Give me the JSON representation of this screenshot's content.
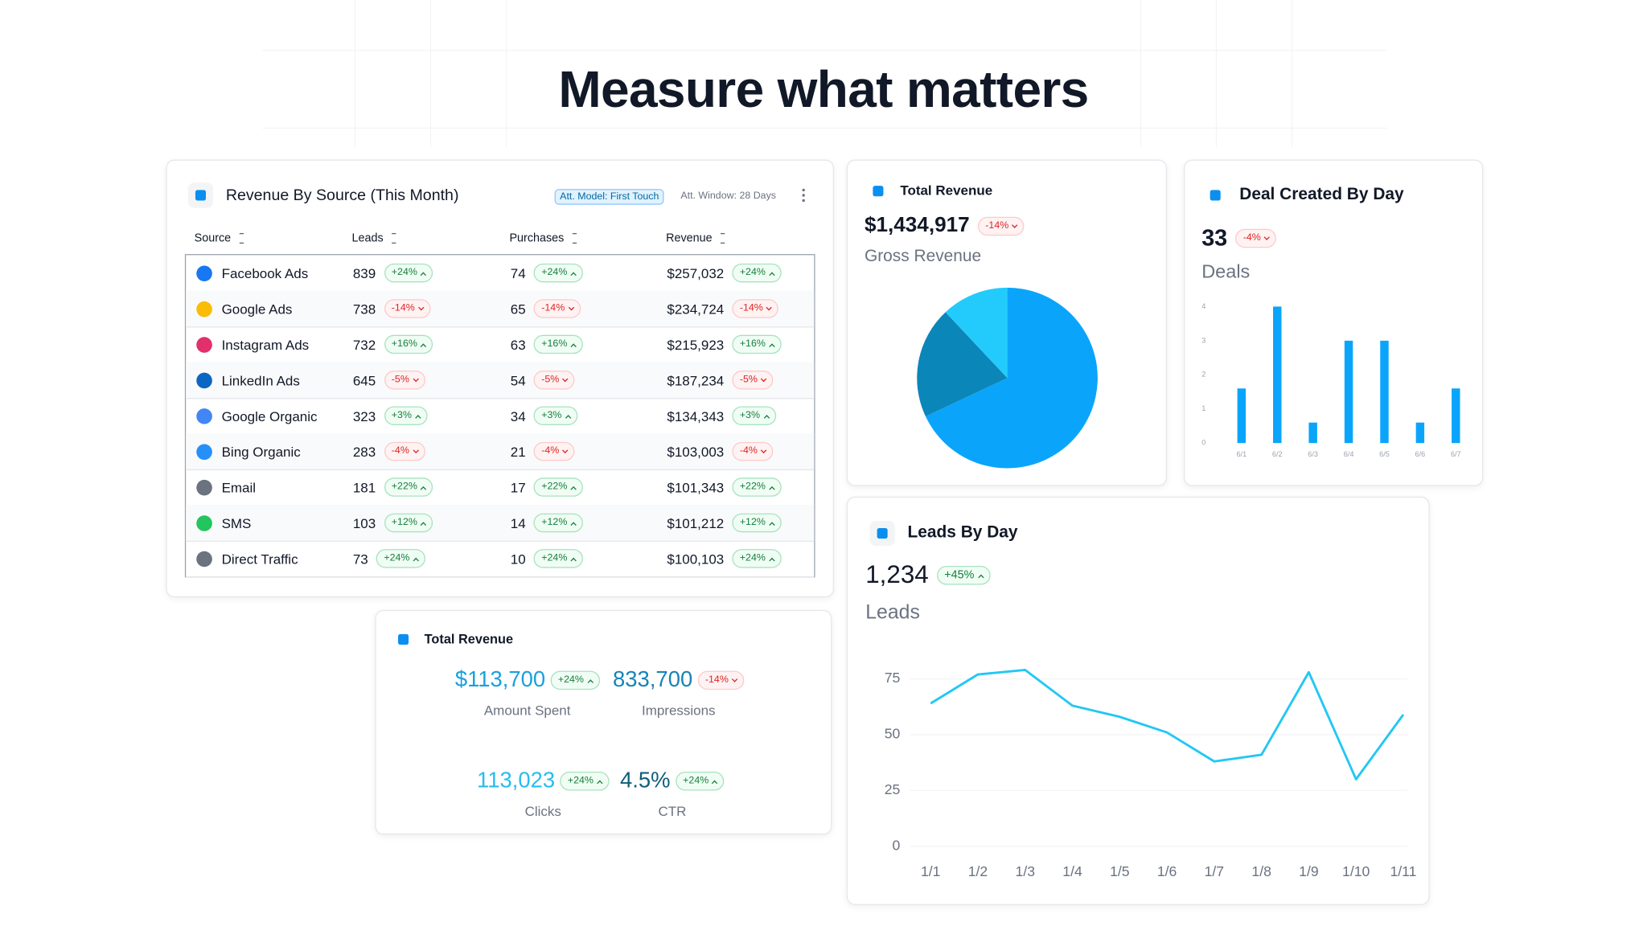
{
  "header": {
    "title": "Measure what matters"
  },
  "table": {
    "title": "Revenue By Source (This Month)",
    "badges": [
      "Att. Model: First Touch",
      "Att. Window: 28 Days"
    ],
    "columns": [
      "Source",
      "Leads",
      "Purchases",
      "Revenue"
    ],
    "rows": [
      [
        "Facebook Ads",
        "839",
        "+24%",
        "74",
        "+24%",
        "$257,032",
        "+24%"
      ],
      [
        "Google Ads",
        "738",
        "-14%",
        "65",
        "-14%",
        "$234,724",
        "-14%"
      ],
      [
        "Instagram Ads",
        "732",
        "+16%",
        "63",
        "+16%",
        "$215,923",
        "+16%"
      ],
      [
        "LinkedIn Ads",
        "645",
        "-5%",
        "54",
        "-5%",
        "$187,234",
        "-5%"
      ],
      [
        "Google Organic",
        "323",
        "+3%",
        "34",
        "+3%",
        "$134,343",
        "+3%"
      ],
      [
        "Bing Organic",
        "283",
        "-4%",
        "21",
        "-4%",
        "$103,003",
        "-4%"
      ],
      [
        "Email",
        "181",
        "+22%",
        "17",
        "+22%",
        "$101,343",
        "+22%"
      ],
      [
        "SMS",
        "103",
        "+12%",
        "14",
        "+12%",
        "$101,212",
        "+12%"
      ],
      [
        "Direct Traffic",
        "73",
        "+24%",
        "10",
        "+24%",
        "$100,103",
        "+24%"
      ]
    ]
  },
  "kpi_card": {
    "title": "Total Revenue",
    "metrics": [
      {
        "value": "$113,700",
        "change": "+24%",
        "label": "Amount Spent",
        "color": "#1aa0dc"
      },
      {
        "value": "833,700",
        "change": "-14%",
        "label": "Impressions",
        "color": "#1784b6"
      },
      {
        "value": "113,023",
        "change": "+24%",
        "label": "Clicks",
        "color": "#26bdf0"
      },
      {
        "value": "4.5%",
        "change": "+24%",
        "label": "CTR",
        "color": "#0f5f7c"
      }
    ]
  },
  "chart_data": [
    {
      "type": "pie",
      "title": "Total Revenue",
      "value": "$1,434,917",
      "change": "-14%",
      "subtitle": "Gross Revenue",
      "values": [
        68,
        20,
        12
      ],
      "colors": [
        "#0aa5fb",
        "#0b86b8",
        "#22cbfb"
      ]
    },
    {
      "type": "bar",
      "title": "Deal Created By Day",
      "value": "33",
      "change": "-4%",
      "subtitle": "Deals",
      "categories": [
        "6/1",
        "6/2",
        "6/3",
        "6/4",
        "6/5",
        "6/6",
        "6/7"
      ],
      "values": [
        1.6,
        4,
        0.6,
        3,
        3,
        0.6,
        1.6
      ],
      "color": "#0aa5fb",
      "ylim": [
        0,
        4
      ],
      "yticks": [
        0,
        1,
        2,
        3,
        4
      ]
    },
    {
      "type": "line",
      "title": "Leads By Day",
      "value": "1,234",
      "change": "+45%",
      "subtitle": "Leads",
      "categories": [
        "1/1",
        "1/2",
        "1/3",
        "1/4",
        "1/5",
        "1/6",
        "1/7",
        "1/8",
        "1/9",
        "1/10",
        "1/11"
      ],
      "values": [
        64,
        77,
        79,
        63,
        58,
        51,
        38,
        41,
        78,
        30,
        59
      ],
      "color": "#22c7f5",
      "ylim": [
        0,
        80
      ],
      "yticks": [
        0,
        25,
        50,
        75
      ],
      "grid": true
    }
  ]
}
